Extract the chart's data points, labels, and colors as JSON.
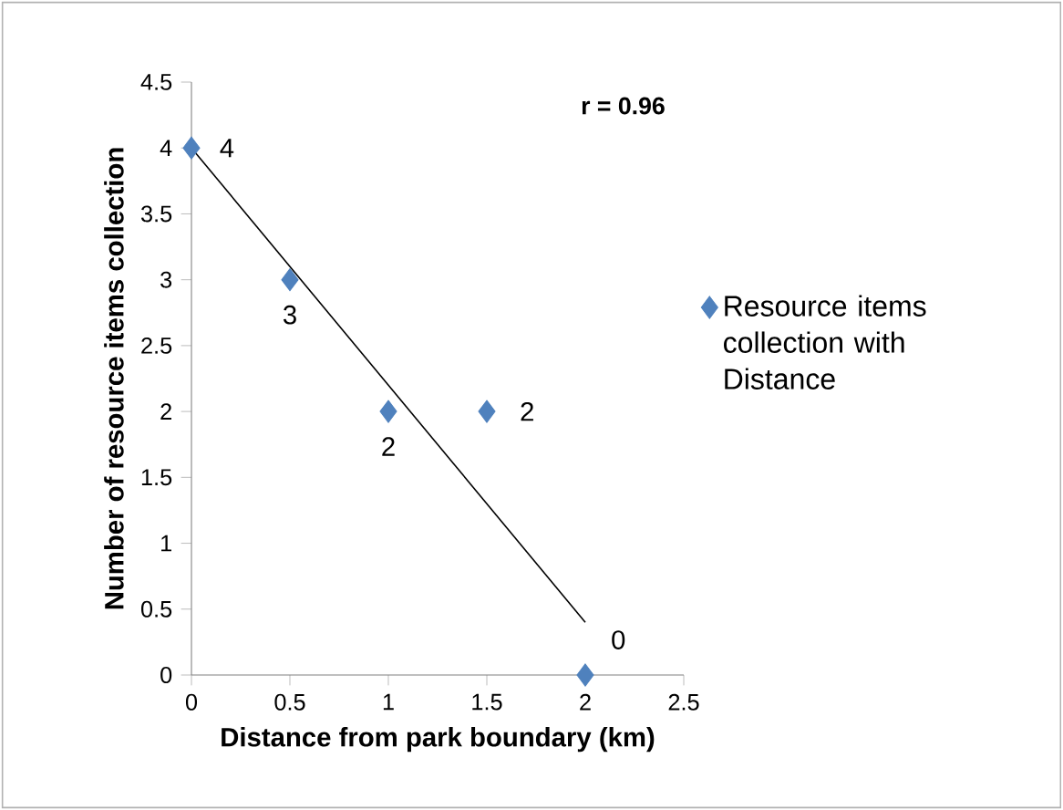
{
  "chart_data": {
    "type": "scatter",
    "xlabel": "Distance from park boundary (km)",
    "ylabel": "Number of resource items collection",
    "annotations": [
      "r = 0.96"
    ],
    "series": [
      {
        "name": "Resource items collection with Distance",
        "color": "#4f81bd",
        "x": [
          0,
          0.5,
          1,
          1.5,
          2
        ],
        "values": [
          4,
          3,
          2,
          2,
          0
        ],
        "value_labels": [
          "4",
          "3",
          "2",
          "2",
          "0"
        ],
        "marker": "diamond"
      },
      {
        "type": "line",
        "color": "#000000",
        "x": [
          0,
          2
        ],
        "values": [
          4,
          0.4
        ],
        "marker": "none"
      }
    ],
    "xlim": [
      0,
      2.5
    ],
    "xticks": [
      0,
      0.5,
      1,
      1.5,
      2,
      2.5
    ],
    "ylim": [
      0,
      4.5
    ],
    "yticks": [
      0,
      0.5,
      1,
      1.5,
      2,
      2.5,
      3,
      3.5,
      4,
      4.5
    ],
    "grid": false,
    "legend": "right"
  }
}
